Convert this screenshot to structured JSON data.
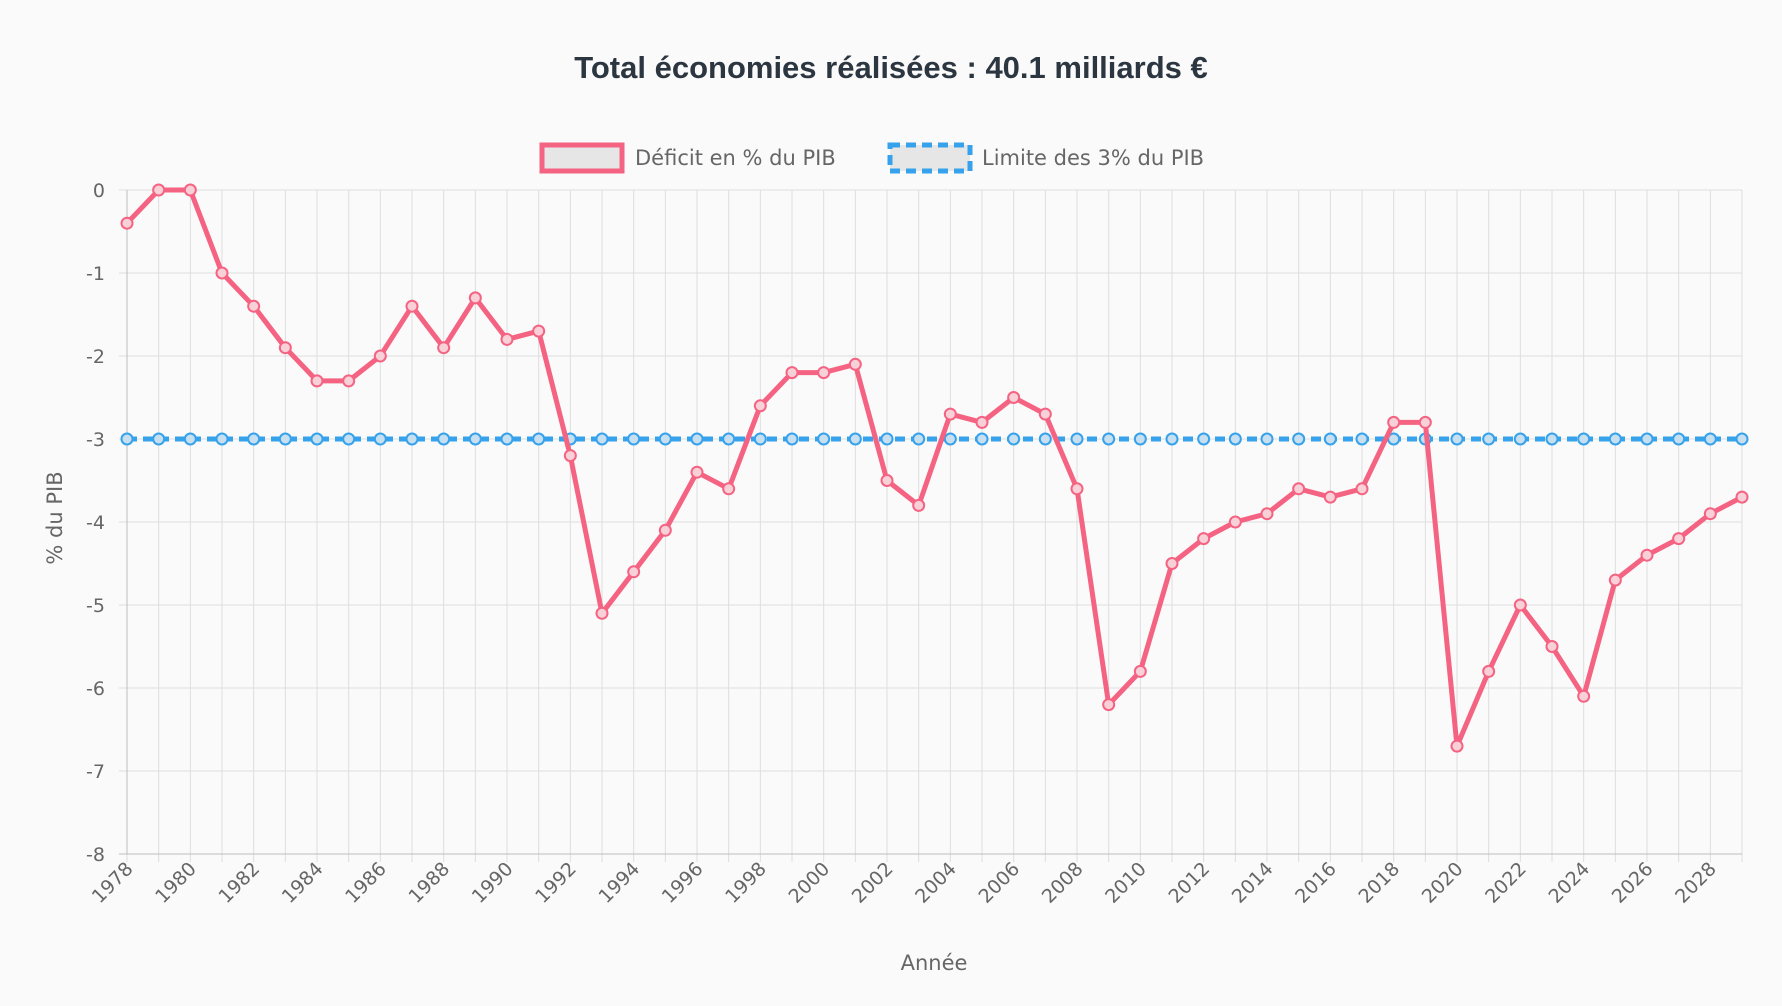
{
  "chart_data": {
    "type": "line",
    "title": "Total économies réalisées : 40.1 milliards €",
    "xlabel": "Année",
    "ylabel": "% du PIB",
    "ylim": [
      -8,
      0
    ],
    "yticks": [
      "0",
      "-1",
      "-2",
      "-3",
      "-4",
      "-5",
      "-6",
      "-7",
      "-8"
    ],
    "x": [
      1978,
      1979,
      1980,
      1981,
      1982,
      1983,
      1984,
      1985,
      1986,
      1987,
      1988,
      1989,
      1990,
      1991,
      1992,
      1993,
      1994,
      1995,
      1996,
      1997,
      1998,
      1999,
      2000,
      2001,
      2002,
      2003,
      2004,
      2005,
      2006,
      2007,
      2008,
      2009,
      2010,
      2011,
      2012,
      2013,
      2014,
      2015,
      2016,
      2017,
      2018,
      2019,
      2020,
      2021,
      2022,
      2023,
      2024,
      2025,
      2026,
      2027,
      2028,
      2029
    ],
    "xtick_labels": [
      "1978",
      "1980",
      "1982",
      "1984",
      "1986",
      "1988",
      "1990",
      "1992",
      "1994",
      "1996",
      "1998",
      "2000",
      "2002",
      "2004",
      "2006",
      "2008",
      "2010",
      "2012",
      "2014",
      "2016",
      "2018",
      "2020",
      "2022",
      "2024",
      "2026",
      "2028"
    ],
    "grid": true,
    "legend_position": "top",
    "series": [
      {
        "name": "Déficit en % du PIB",
        "color": "#f56382",
        "style": "solid",
        "values": [
          -0.4,
          0,
          0,
          -1.0,
          -1.4,
          -1.9,
          -2.3,
          -2.3,
          -2.0,
          -1.4,
          -1.9,
          -1.3,
          -1.8,
          -1.7,
          -3.2,
          -5.1,
          -4.6,
          -4.1,
          -3.4,
          -3.6,
          -2.6,
          -2.2,
          -2.2,
          -2.1,
          -3.5,
          -3.8,
          -2.7,
          -2.8,
          -2.5,
          -2.7,
          -3.6,
          -6.2,
          -5.8,
          -4.5,
          -4.2,
          -4.0,
          -3.9,
          -3.6,
          -3.7,
          -3.6,
          -2.8,
          -2.8,
          -6.7,
          -5.8,
          -5.0,
          -5.5,
          -6.1,
          -4.7,
          -4.4,
          -4.2,
          -3.9,
          -3.7
        ]
      },
      {
        "name": "Limite des 3% du PIB",
        "color": "#36a2eb",
        "style": "dashed",
        "values": [
          -3,
          -3,
          -3,
          -3,
          -3,
          -3,
          -3,
          -3,
          -3,
          -3,
          -3,
          -3,
          -3,
          -3,
          -3,
          -3,
          -3,
          -3,
          -3,
          -3,
          -3,
          -3,
          -3,
          -3,
          -3,
          -3,
          -3,
          -3,
          -3,
          -3,
          -3,
          -3,
          -3,
          -3,
          -3,
          -3,
          -3,
          -3,
          -3,
          -3,
          -3,
          -3,
          -3,
          -3,
          -3,
          -3,
          -3,
          -3,
          -3,
          -3,
          -3,
          -3
        ]
      }
    ]
  }
}
